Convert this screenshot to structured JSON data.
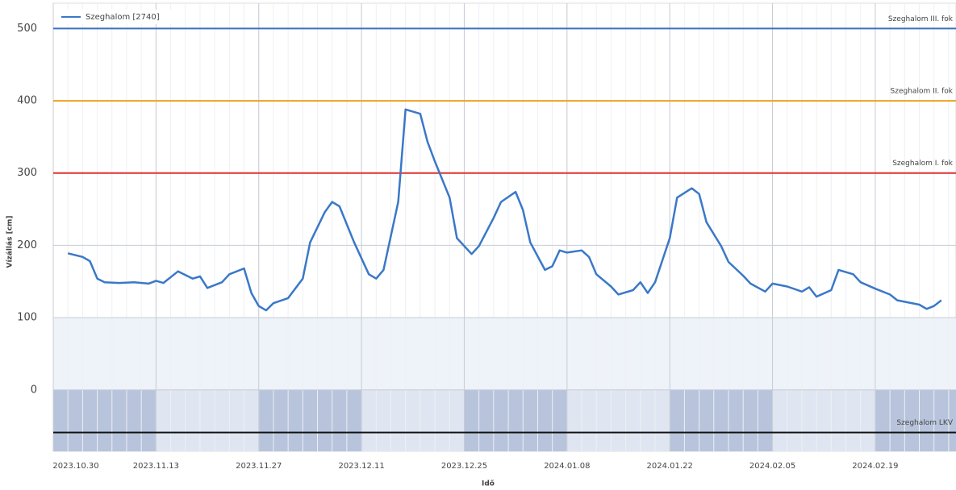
{
  "chart_data": {
    "type": "line",
    "y_label": "Vízállás [cm]",
    "x_label": "Idő",
    "legend": "top-left",
    "grid": true,
    "xlim": [
      "2023.10.30",
      "2024.03.01"
    ],
    "xticks": [
      "2023.10.30",
      "2023.11.13",
      "2023.11.27",
      "2023.12.11",
      "2023.12.25",
      "2024.01.08",
      "2024.01.22",
      "2024.02.05",
      "2024.02.19"
    ],
    "ylim": [
      -85,
      535
    ],
    "yticks": [
      0,
      100,
      200,
      300,
      400,
      500
    ],
    "x": [
      "2023.11.01",
      "2023.11.03",
      "2023.11.04",
      "2023.11.05",
      "2023.11.06",
      "2023.11.08",
      "2023.11.10",
      "2023.11.12",
      "2023.11.13",
      "2023.11.14",
      "2023.11.16",
      "2023.11.18",
      "2023.11.19",
      "2023.11.20",
      "2023.11.22",
      "2023.11.23",
      "2023.11.25",
      "2023.11.26",
      "2023.11.27",
      "2023.11.28",
      "2023.11.29",
      "2023.12.01",
      "2023.12.03",
      "2023.12.04",
      "2023.12.06",
      "2023.12.07",
      "2023.12.08",
      "2023.12.10",
      "2023.12.12",
      "2023.12.13",
      "2023.12.14",
      "2023.12.16",
      "2023.12.17",
      "2023.12.19",
      "2023.12.20",
      "2023.12.21",
      "2023.12.23",
      "2023.12.24",
      "2023.12.26",
      "2023.12.27",
      "2023.12.29",
      "2023.12.30",
      "2024.01.01",
      "2024.01.02",
      "2024.01.03",
      "2024.01.05",
      "2024.01.06",
      "2024.01.07",
      "2024.01.08",
      "2024.01.10",
      "2024.01.11",
      "2024.01.12",
      "2024.01.14",
      "2024.01.15",
      "2024.01.17",
      "2024.01.18",
      "2024.01.19",
      "2024.01.20",
      "2024.01.22",
      "2024.01.23",
      "2024.01.25",
      "2024.01.26",
      "2024.01.27",
      "2024.01.29",
      "2024.01.30",
      "2024.02.01",
      "2024.02.02",
      "2024.02.04",
      "2024.02.05",
      "2024.02.07",
      "2024.02.09",
      "2024.02.10",
      "2024.02.11",
      "2024.02.13",
      "2024.02.14",
      "2024.02.16",
      "2024.02.17",
      "2024.02.19",
      "2024.02.21",
      "2024.02.22",
      "2024.02.25",
      "2024.02.26",
      "2024.02.27",
      "2024.02.28"
    ],
    "series": [
      {
        "name": "Szeghalom [2740]",
        "color": "#3a78c8",
        "values": [
          189,
          184,
          178,
          154,
          149,
          148,
          149,
          147,
          151,
          148,
          164,
          154,
          157,
          141,
          149,
          160,
          168,
          134,
          116,
          110,
          120,
          127,
          154,
          204,
          246,
          260,
          254,
          204,
          160,
          154,
          166,
          260,
          388,
          382,
          343,
          316,
          266,
          210,
          188,
          199,
          238,
          260,
          274,
          249,
          204,
          166,
          171,
          193,
          190,
          193,
          184,
          160,
          143,
          132,
          138,
          149,
          134,
          149,
          210,
          266,
          279,
          271,
          232,
          199,
          177,
          158,
          147,
          136,
          147,
          143,
          136,
          142,
          129,
          138,
          166,
          160,
          149,
          140,
          132,
          124,
          118,
          112,
          116,
          124
        ]
      }
    ],
    "thresholds": [
      {
        "name": "Szeghalom III. fok",
        "value": 500,
        "color": "#3a70c0"
      },
      {
        "name": "Szeghalom II. fok",
        "value": 400,
        "color": "#f0a020"
      },
      {
        "name": "Szeghalom I. fok",
        "value": 300,
        "color": "#e03030"
      },
      {
        "name": "Szeghalom LKV",
        "value": -59,
        "color": "#111111"
      }
    ]
  }
}
